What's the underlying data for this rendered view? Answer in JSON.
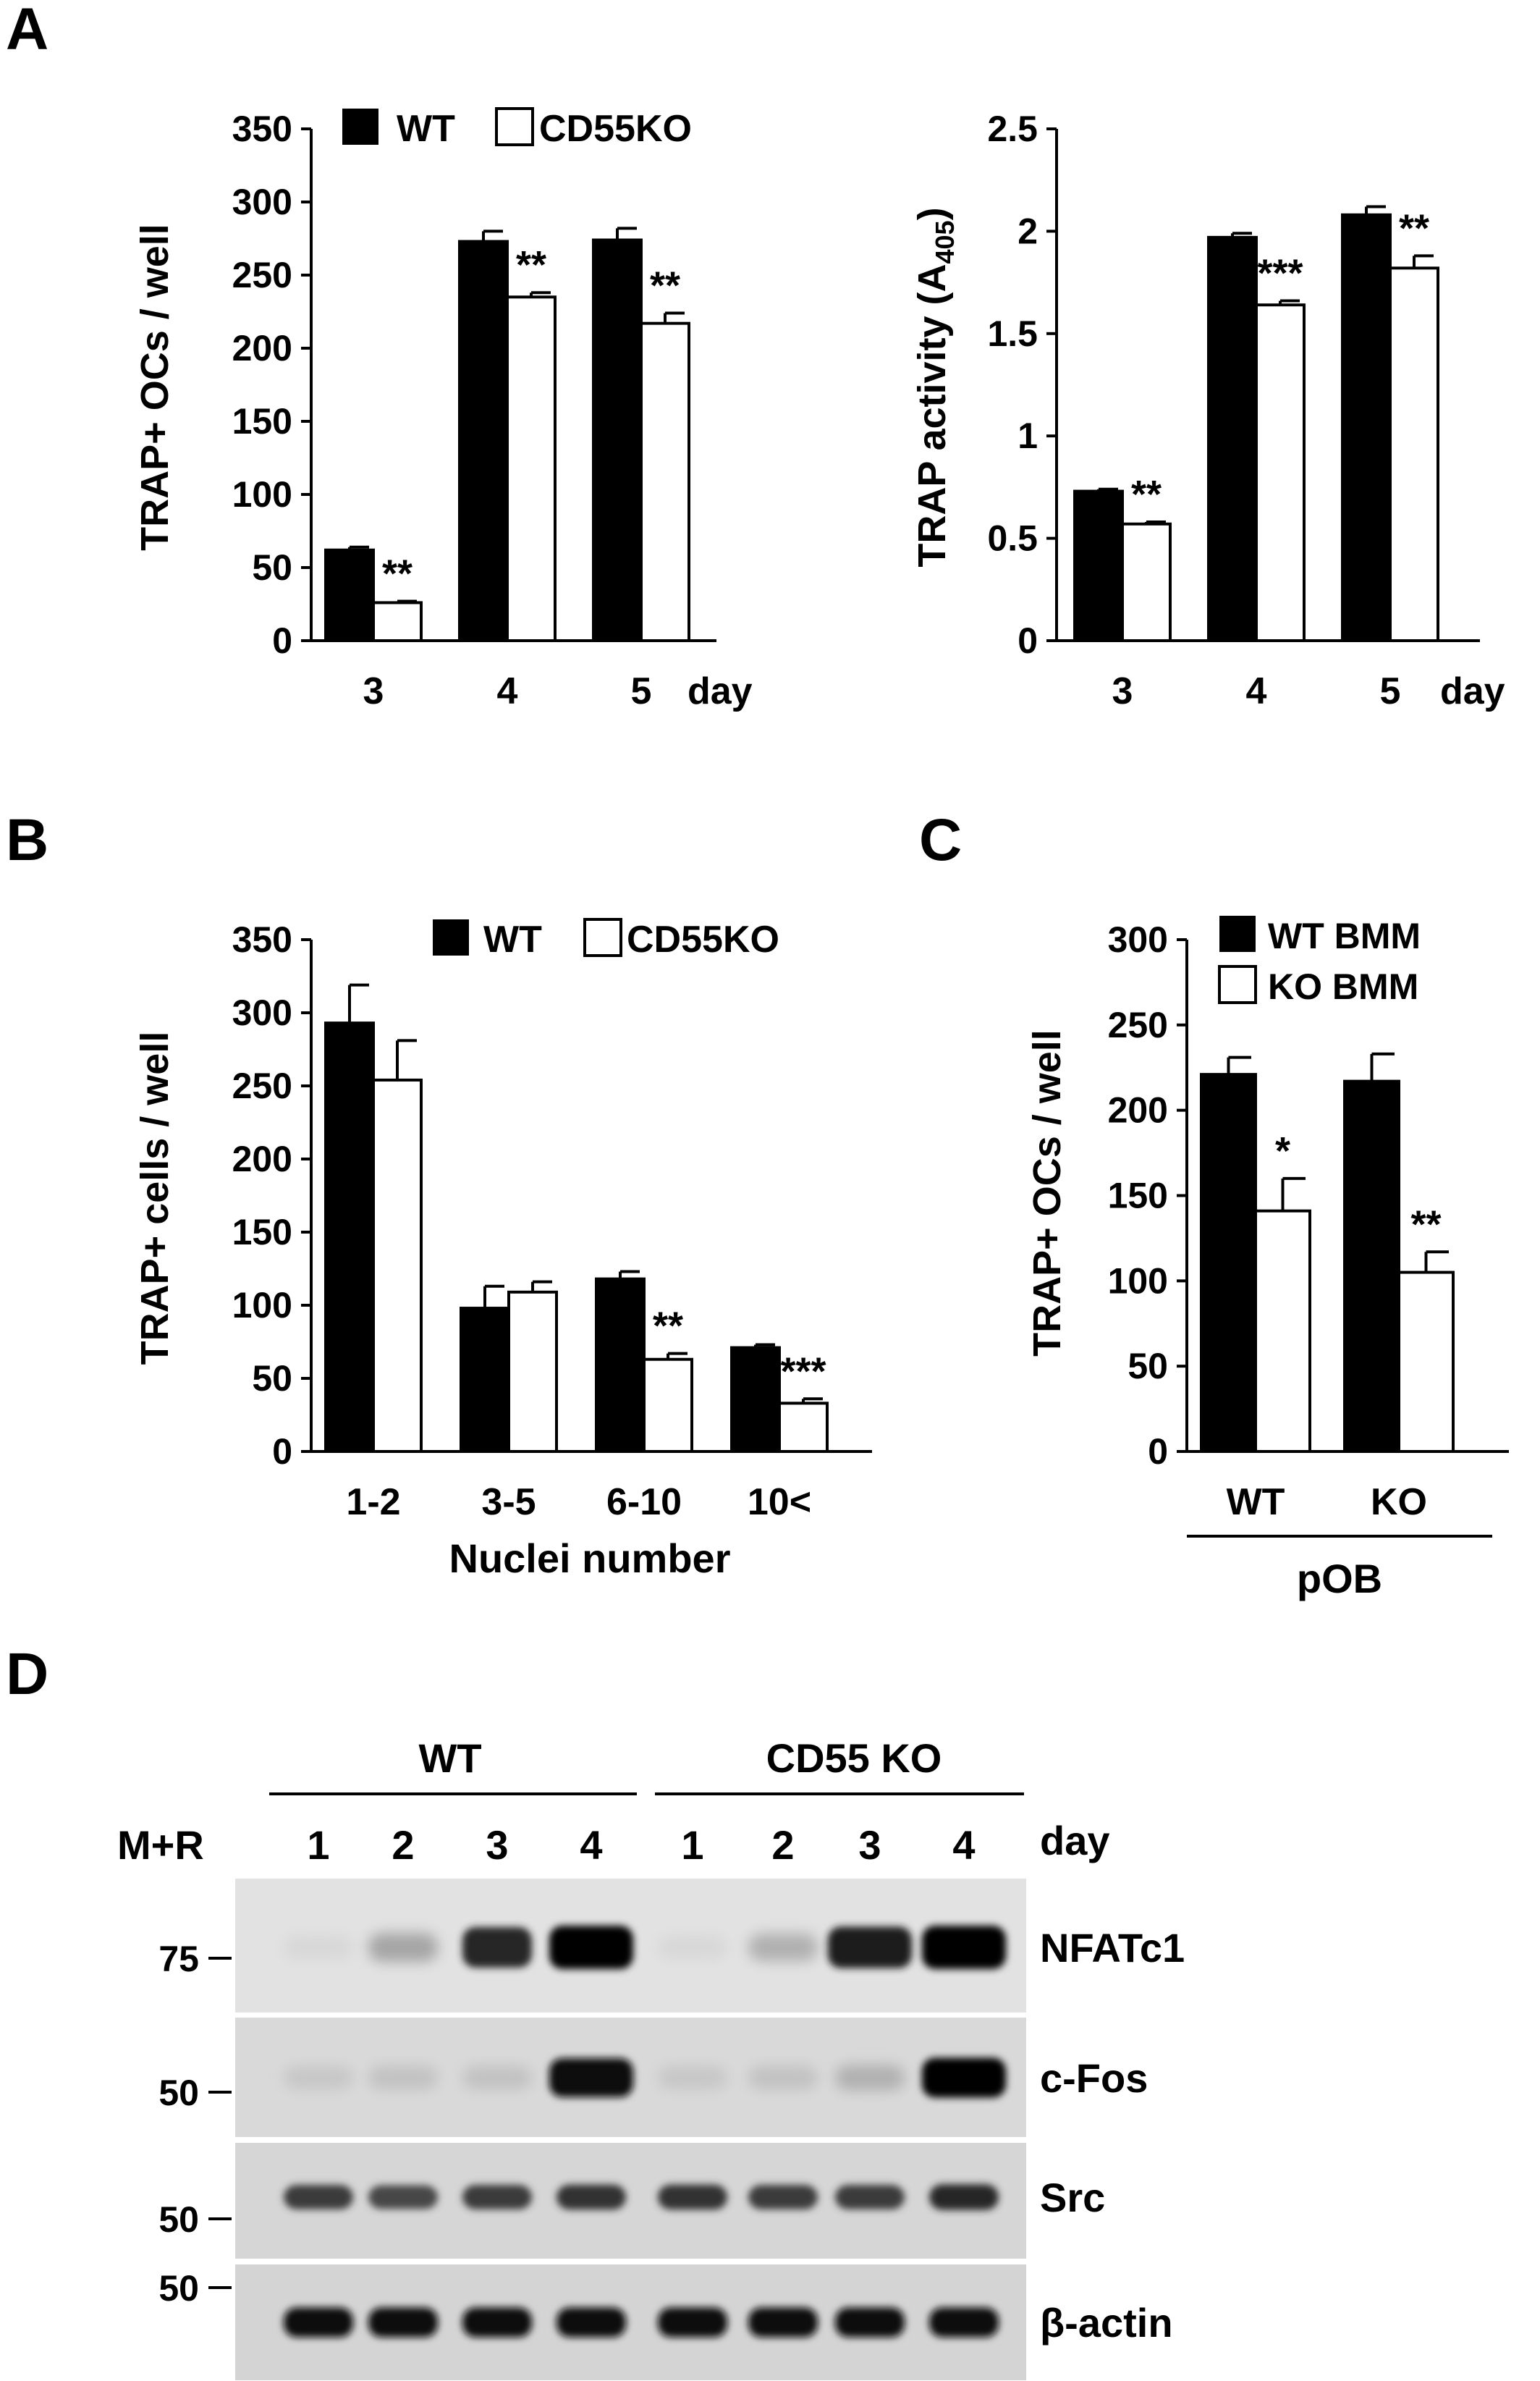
{
  "panel_labels": {
    "a": "A",
    "b": "B",
    "c": "C",
    "d": "D"
  },
  "chart_data": [
    {
      "id": "A1",
      "type": "bar",
      "ylabel": "TRAP+ OCs / well",
      "x_unit": "day",
      "categories": [
        "3",
        "4",
        "5"
      ],
      "yticks": [
        "0",
        "50",
        "100",
        "150",
        "200",
        "250",
        "300",
        "350"
      ],
      "ylim": [
        0,
        350
      ],
      "series": [
        {
          "name": "WT",
          "color": "#000000",
          "values": [
            62,
            273,
            274
          ],
          "errors": [
            2,
            7,
            8
          ]
        },
        {
          "name": "CD55KO",
          "color": "#ffffff",
          "values": [
            26,
            235,
            217
          ],
          "errors": [
            1,
            3,
            7
          ]
        }
      ],
      "annotations": [
        "**",
        "**",
        "**"
      ],
      "legend": "top"
    },
    {
      "id": "A2",
      "type": "bar",
      "ylabel_main": "TRAP activity (A",
      "ylabel_sub": "405",
      "ylabel_end": ")",
      "x_unit": "day",
      "categories": [
        "3",
        "4",
        "5"
      ],
      "yticks": [
        "0",
        "0.5",
        "1",
        "1.5",
        "2",
        "2.5"
      ],
      "ylim": [
        0,
        2.5
      ],
      "series": [
        {
          "name": "WT",
          "color": "#000000",
          "values": [
            0.73,
            1.97,
            2.08
          ],
          "errors": [
            0.01,
            0.02,
            0.04
          ]
        },
        {
          "name": "CD55KO",
          "color": "#ffffff",
          "values": [
            0.57,
            1.64,
            1.82
          ],
          "errors": [
            0.01,
            0.02,
            0.06
          ]
        }
      ],
      "annotations": [
        "**",
        "***",
        "**"
      ]
    },
    {
      "id": "B",
      "type": "bar",
      "ylabel": "TRAP+ cells / well",
      "xlabel": "Nuclei number",
      "categories": [
        "1-2",
        "3-5",
        "6-10",
        "10<"
      ],
      "yticks": [
        "0",
        "50",
        "100",
        "150",
        "200",
        "250",
        "300",
        "350"
      ],
      "ylim": [
        0,
        350
      ],
      "series": [
        {
          "name": "WT",
          "color": "#000000",
          "values": [
            293,
            98,
            118,
            71
          ],
          "errors": [
            26,
            15,
            5,
            2
          ]
        },
        {
          "name": "CD55KO",
          "color": "#ffffff",
          "values": [
            254,
            109,
            63,
            33
          ],
          "errors": [
            27,
            7,
            4,
            3
          ]
        }
      ],
      "annotations": [
        "",
        "",
        "**",
        "***"
      ],
      "legend": "top"
    },
    {
      "id": "C",
      "type": "bar",
      "ylabel": "TRAP+ OCs / well",
      "group_label": "pOB",
      "categories": [
        "WT",
        "KO"
      ],
      "yticks": [
        "0",
        "50",
        "100",
        "150",
        "200",
        "250",
        "300"
      ],
      "ylim": [
        0,
        300
      ],
      "series": [
        {
          "name": "WT BMM",
          "color": "#000000",
          "values": [
            221,
            217
          ],
          "errors": [
            10,
            16
          ]
        },
        {
          "name": "KO BMM",
          "color": "#ffffff",
          "values": [
            141,
            105
          ],
          "errors": [
            19,
            12
          ]
        }
      ],
      "annotations": [
        "*",
        "**"
      ],
      "legend": "top-left"
    }
  ],
  "blot": {
    "group_labels": [
      "WT",
      "CD55 KO"
    ],
    "treatment": "M+R",
    "lanes": [
      "1",
      "2",
      "3",
      "4",
      "1",
      "2",
      "3",
      "4"
    ],
    "lane_unit": "day",
    "rows": [
      {
        "protein": "NFATc1",
        "marker": "75",
        "intensity": [
          0.02,
          0.25,
          0.85,
          1.0,
          0.02,
          0.2,
          0.9,
          1.0
        ]
      },
      {
        "protein": "c-Fos",
        "marker": "50",
        "intensity": [
          0.1,
          0.12,
          0.12,
          0.95,
          0.1,
          0.12,
          0.2,
          1.0
        ]
      },
      {
        "protein": "Src",
        "marker": "50",
        "intensity": [
          0.75,
          0.7,
          0.75,
          0.8,
          0.8,
          0.75,
          0.75,
          0.85
        ]
      },
      {
        "protein": "β-actin",
        "marker": "50",
        "intensity": [
          0.95,
          0.95,
          0.95,
          0.95,
          0.95,
          0.95,
          0.95,
          0.95
        ]
      }
    ]
  }
}
